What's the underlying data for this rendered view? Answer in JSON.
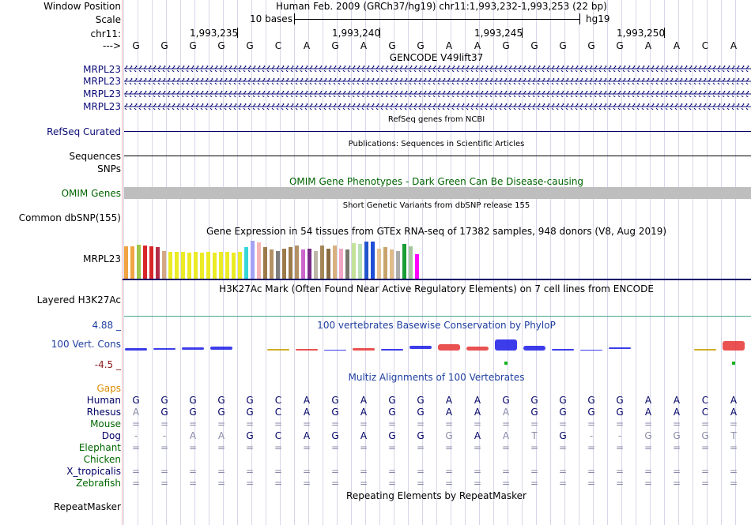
{
  "labels": {
    "window_position": "Window Position",
    "scale": "Scale",
    "chrom": "chr11:",
    "arrow": "--->",
    "mrpl23": "MRPL23",
    "refseq": "RefSeq Curated",
    "sequences": "Sequences",
    "snps": "SNPs",
    "omim": "OMIM Genes",
    "dbsnp": "Common dbSNP(155)",
    "gtex": "MRPL23",
    "h3k27ac": "Layered H3K27Ac",
    "cons_max": "4.88 _",
    "cons": "100 Vert. Cons",
    "cons_min": "-4.5 _",
    "gaps": "Gaps",
    "repeatmasker": "RepeatMasker"
  },
  "header": {
    "position": "Human Feb. 2009 (GRCh37/hg19)    chr11:1,993,232-1,993,253 (22 bp)",
    "scale_label": "10 bases",
    "assembly": "hg19",
    "ticks": [
      "1,993,235",
      "1,993,240",
      "1,993,245",
      "1,993,250"
    ]
  },
  "sequence": [
    "G",
    "G",
    "G",
    "G",
    "G",
    "C",
    "A",
    "G",
    "A",
    "G",
    "G",
    "A",
    "A",
    "G",
    "G",
    "G",
    "G",
    "G",
    "A",
    "A",
    "C",
    "A"
  ],
  "tracks": {
    "gencode": "GENCODE V49lift37",
    "refseq_title": "RefSeq genes from NCBI",
    "publications": "Publications: Sequences in Scientific Articles",
    "omim_title": "OMIM Gene Phenotypes - Dark Green Can Be Disease-causing",
    "dbsnp_title": "Short Genetic Variants from dbSNP release 155",
    "gtex_title": "Gene Expression in 54 tissues from GTEx RNA-seq of 17382 samples, 948 donors (V8, Aug 2019)",
    "h3k27ac_title": "H3K27Ac Mark (Often Found Near Active Regulatory Elements) on 7 cell lines from ENCODE",
    "cons_title": "100 vertebrates Basewise Conservation by PhyloP",
    "multiz_title": "Multiz Alignments of 100 Vertebrates",
    "repeat_title": "Repeating Elements by RepeatMasker"
  },
  "gtex_bars": [
    {
      "c": "#f0a442",
      "v": 0.78
    },
    {
      "c": "#f0a442",
      "v": 0.78
    },
    {
      "c": "#9fc54a",
      "v": 0.82
    },
    {
      "c": "#d8262b",
      "v": 0.8
    },
    {
      "c": "#d8262b",
      "v": 0.78
    },
    {
      "c": "#b32d48",
      "v": 0.76
    },
    {
      "c": "#d3a883",
      "v": 0.68
    },
    {
      "c": "#ebeb26",
      "v": 0.66
    },
    {
      "c": "#ebeb26",
      "v": 0.66
    },
    {
      "c": "#ebeb26",
      "v": 0.66
    },
    {
      "c": "#ebeb26",
      "v": 0.64
    },
    {
      "c": "#ebeb26",
      "v": 0.66
    },
    {
      "c": "#ebeb26",
      "v": 0.64
    },
    {
      "c": "#ebeb26",
      "v": 0.66
    },
    {
      "c": "#ebeb26",
      "v": 0.64
    },
    {
      "c": "#ebeb26",
      "v": 0.66
    },
    {
      "c": "#ebeb26",
      "v": 0.66
    },
    {
      "c": "#ebeb26",
      "v": 0.64
    },
    {
      "c": "#ebeb26",
      "v": 0.66
    },
    {
      "c": "#36d7d7",
      "v": 0.76
    },
    {
      "c": "#a3a3f5",
      "v": 0.92
    },
    {
      "c": "#f5b5b5",
      "v": 0.88
    },
    {
      "c": "#9c7a4a",
      "v": 0.76
    },
    {
      "c": "#b49164",
      "v": 0.72
    },
    {
      "c": "#7e7e7e",
      "v": 0.68
    },
    {
      "c": "#9c7a4a",
      "v": 0.74
    },
    {
      "c": "#9c7a4a",
      "v": 0.76
    },
    {
      "c": "#b49164",
      "v": 0.8
    },
    {
      "c": "#cc66cc",
      "v": 0.72
    },
    {
      "c": "#7a2c88",
      "v": 0.74
    },
    {
      "c": "#bdb6a8",
      "v": 0.68
    },
    {
      "c": "#a58757",
      "v": 0.8
    },
    {
      "c": "#8a6c43",
      "v": 0.74
    },
    {
      "c": "#d9b080",
      "v": 0.8
    },
    {
      "c": "#f1a7c3",
      "v": 0.74
    },
    {
      "c": "#76766b",
      "v": 0.72
    },
    {
      "c": "#c3e29a",
      "v": 0.86
    },
    {
      "c": "#b9e1b4",
      "v": 0.84
    },
    {
      "c": "#2255cc",
      "v": 0.9
    },
    {
      "c": "#1f4fd6",
      "v": 0.9
    },
    {
      "c": "#e4c293",
      "v": 0.74
    },
    {
      "c": "#c8a46d",
      "v": 0.76
    },
    {
      "c": "#e0bb88",
      "v": 0.72
    },
    {
      "c": "#ababab",
      "v": 0.68
    },
    {
      "c": "#1a9d35",
      "v": 0.84
    },
    {
      "c": "#a6c79d",
      "v": 0.78
    },
    {
      "c": "#ff00ff",
      "v": 0.6
    }
  ],
  "multiz": {
    "species": [
      {
        "name": "Human",
        "color": "#000066",
        "row": [
          "G",
          "G",
          "G",
          "G",
          "G",
          "C",
          "A",
          "G",
          "A",
          "G",
          "G",
          "A",
          "A",
          "G",
          "G",
          "G",
          "G",
          "G",
          "A",
          "A",
          "C",
          "A"
        ]
      },
      {
        "name": "Rhesus",
        "color": "#000066",
        "row": [
          "A",
          "G",
          "G",
          "G",
          "G",
          "C",
          "A",
          "G",
          "A",
          "G",
          "G",
          "A",
          "A",
          "A",
          "G",
          "G",
          "G",
          "G",
          "A",
          "A",
          "C",
          "A"
        ]
      },
      {
        "name": "Mouse",
        "color": "#006600",
        "row": [
          "=",
          "=",
          "=",
          "=",
          "=",
          "=",
          "=",
          "=",
          "=",
          "=",
          "=",
          "=",
          "=",
          "=",
          "=",
          "=",
          "=",
          "=",
          "=",
          "=",
          "=",
          "="
        ]
      },
      {
        "name": "Dog",
        "color": "#000066",
        "row": [
          "-",
          "-",
          "A",
          "A",
          "G",
          "C",
          "A",
          "G",
          "A",
          "G",
          "G",
          "G",
          "A",
          "A",
          "T",
          "G",
          "-",
          "-",
          "G",
          "G",
          "G",
          "T"
        ]
      },
      {
        "name": "Elephant",
        "color": "#006600",
        "row": [
          "=",
          "=",
          "=",
          "=",
          "=",
          "=",
          "=",
          "=",
          "=",
          "=",
          "=",
          "=",
          "=",
          "=",
          "=",
          "=",
          "=",
          "=",
          "=",
          "=",
          "=",
          "="
        ]
      },
      {
        "name": "Chicken",
        "color": "#006600",
        "row": [
          "",
          "",
          "",
          "",
          "",
          "",
          "",
          "",
          "",
          "",
          "",
          "",
          "",
          "",
          "",
          "",
          "",
          "",
          "",
          "",
          "",
          ""
        ]
      },
      {
        "name": "X_tropicalis",
        "color": "#000066",
        "row": [
          "=",
          "=",
          "=",
          "=",
          "=",
          "=",
          "=",
          "=",
          "=",
          "=",
          "=",
          "=",
          "=",
          "=",
          "=",
          "=",
          "=",
          "=",
          "=",
          "=",
          "=",
          "="
        ]
      },
      {
        "name": "Zebrafish",
        "color": "#006600",
        "row": [
          "=",
          "=",
          "=",
          "=",
          "=",
          "=",
          "=",
          "=",
          "=",
          "=",
          "=",
          "=",
          "=",
          "=",
          "=",
          "=",
          "=",
          "=",
          "=",
          "=",
          "=",
          "="
        ]
      }
    ]
  },
  "cons_logo": [
    {
      "b": "G",
      "c": "#1a1ae6",
      "h": 3,
      "d": 0
    },
    {
      "b": "G",
      "c": "#1a1ae6",
      "h": 2,
      "d": -1
    },
    {
      "b": "G",
      "c": "#1a1ae6",
      "h": 3,
      "d": -1
    },
    {
      "b": "G",
      "c": "#1a1ae6",
      "h": 4,
      "d": -1
    },
    {
      "b": "",
      "c": "#000",
      "h": 0,
      "d": 0
    },
    {
      "b": "C",
      "c": "#c8a000",
      "h": 2,
      "d": 0
    },
    {
      "b": "A",
      "c": "#e63232",
      "h": 2,
      "d": 0
    },
    {
      "b": "G",
      "c": "#1a1ae6",
      "h": 1,
      "d": 0
    },
    {
      "b": "A",
      "c": "#e63232",
      "h": 3,
      "d": 0
    },
    {
      "b": "G",
      "c": "#1a1ae6",
      "h": 2,
      "d": 0
    },
    {
      "b": "G",
      "c": "#1a1ae6",
      "h": 4,
      "d": -2
    },
    {
      "b": "A",
      "c": "#e63232",
      "h": 8,
      "d": 0
    },
    {
      "b": "A",
      "c": "#e63232",
      "h": 5,
      "d": 0
    },
    {
      "b": "G",
      "c": "#1a1ae6",
      "h": 14,
      "d": 0
    },
    {
      "b": "G",
      "c": "#1a1ae6",
      "h": 6,
      "d": 0
    },
    {
      "b": "G",
      "c": "#1a1ae6",
      "h": 2,
      "d": 0
    },
    {
      "b": "G",
      "c": "#1a1ae6",
      "h": 1,
      "d": 0
    },
    {
      "b": "G",
      "c": "#1a1ae6",
      "h": 2,
      "d": -2
    },
    {
      "b": "",
      "c": "#000",
      "h": 0,
      "d": 0
    },
    {
      "b": "",
      "c": "#000",
      "h": 0,
      "d": 0
    },
    {
      "b": "C",
      "c": "#c8a000",
      "h": 2,
      "d": 0
    },
    {
      "b": "A",
      "c": "#e63232",
      "h": 12,
      "d": 0
    }
  ]
}
